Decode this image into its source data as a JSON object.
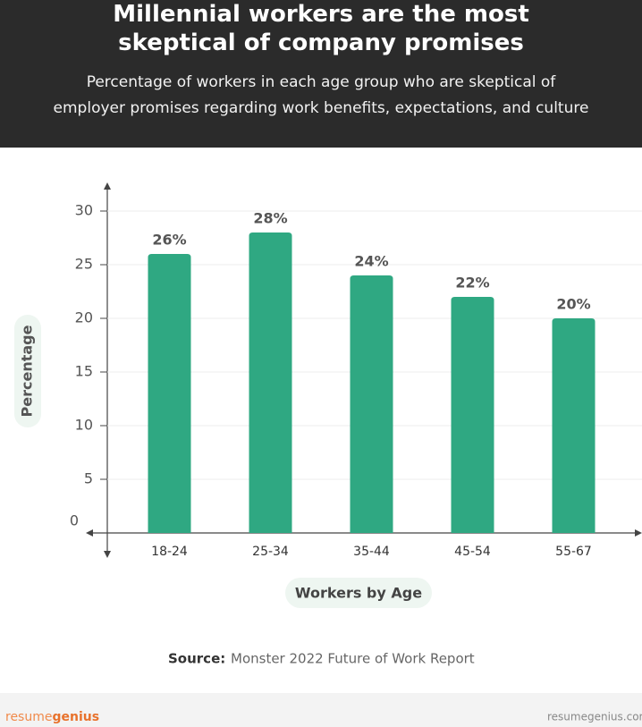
{
  "chart_data": {
    "type": "bar",
    "title": "Millennial workers are the most skeptical of company promises",
    "subtitle": "Percentage of workers in each age group who are skeptical of employer promises regarding work benefits, expectations, and culture",
    "y_label": "Percentage",
    "x_label": "Workers by Age",
    "categories": [
      "18-24",
      "25-34",
      "35-44",
      "45-54",
      "55-67"
    ],
    "values": [
      26,
      28,
      24,
      22,
      20
    ],
    "value_labels": [
      "26%",
      "28%",
      "24%",
      "22%",
      "20%"
    ],
    "color": "#2fa882",
    "ylim": [
      0,
      32
    ],
    "yticks": [
      0,
      5,
      10,
      15,
      20,
      25,
      30
    ],
    "grid": true
  },
  "source": {
    "label": "Source:",
    "text": "Monster 2022 Future of Work Report"
  },
  "footer": {
    "brand_first": "resume",
    "brand_second": "genius",
    "url": "resumegenius.com"
  }
}
